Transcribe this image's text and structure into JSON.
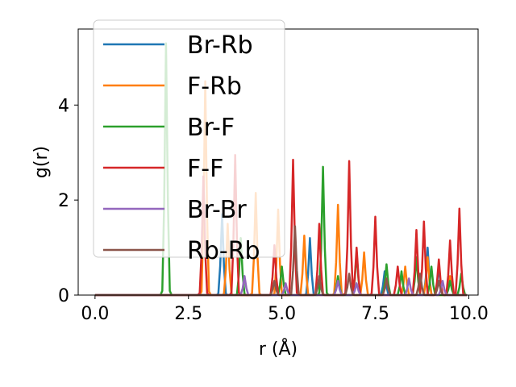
{
  "chart_data": {
    "type": "line",
    "xlabel": "r (Å)",
    "ylabel": "g(r)",
    "xlim": [
      -0.45,
      10.25
    ],
    "ylim": [
      0,
      5.6
    ],
    "xticks": [
      0.0,
      2.5,
      5.0,
      7.5,
      10.0
    ],
    "xtick_labels": [
      "0.0",
      "2.5",
      "5.0",
      "7.5",
      "10.0"
    ],
    "yticks": [
      0,
      2,
      4
    ],
    "ytick_labels": [
      "0",
      "2",
      "4"
    ],
    "grid": false,
    "legend_placement": "upper-left",
    "series": [
      {
        "name": "Br-Rb",
        "color": "#1f77b4",
        "peaks": [
          [
            3.4,
            1.7
          ],
          [
            5.75,
            1.2
          ],
          [
            7.75,
            0.5
          ],
          [
            8.9,
            1.0
          ],
          [
            9.2,
            0.6
          ]
        ]
      },
      {
        "name": "F-Rb",
        "color": "#ff7f0e",
        "peaks": [
          [
            2.95,
            4.5
          ],
          [
            3.55,
            1.5
          ],
          [
            4.3,
            2.15
          ],
          [
            4.9,
            1.8
          ],
          [
            5.6,
            1.25
          ],
          [
            6.5,
            1.9
          ],
          [
            7.2,
            0.9
          ],
          [
            8.3,
            0.6
          ],
          [
            8.9,
            0.8
          ],
          [
            9.5,
            0.4
          ]
        ]
      },
      {
        "name": "Br-F",
        "color": "#2ca02c",
        "peaks": [
          [
            1.9,
            5.3
          ],
          [
            3.9,
            1.2
          ],
          [
            5.0,
            0.6
          ],
          [
            6.1,
            2.7
          ],
          [
            6.5,
            0.4
          ],
          [
            7.0,
            0.9
          ],
          [
            7.8,
            0.65
          ],
          [
            8.2,
            0.5
          ],
          [
            8.6,
            0.8
          ],
          [
            9.0,
            0.6
          ],
          [
            9.5,
            0.3
          ],
          [
            9.8,
            0.45
          ]
        ]
      },
      {
        "name": "F-F",
        "color": "#d62728",
        "peaks": [
          [
            2.9,
            2.5
          ],
          [
            3.75,
            2.95
          ],
          [
            4.8,
            1.05
          ],
          [
            5.3,
            2.85
          ],
          [
            6.0,
            1.5
          ],
          [
            6.8,
            2.82
          ],
          [
            7.0,
            1.0
          ],
          [
            7.5,
            1.65
          ],
          [
            8.1,
            0.6
          ],
          [
            8.6,
            1.37
          ],
          [
            8.8,
            1.55
          ],
          [
            9.2,
            0.75
          ],
          [
            9.5,
            1.15
          ],
          [
            9.75,
            1.82
          ]
        ]
      },
      {
        "name": "Br-Br",
        "color": "#9467bd",
        "peaks": [
          [
            4.0,
            0.4
          ],
          [
            5.1,
            0.25
          ],
          [
            6.5,
            0.3
          ],
          [
            7.0,
            0.25
          ],
          [
            8.4,
            0.35
          ],
          [
            9.3,
            0.3
          ]
        ]
      },
      {
        "name": "Rb-Rb",
        "color": "#8c564b",
        "peaks": [
          [
            4.8,
            0.3
          ],
          [
            5.35,
            1.45
          ],
          [
            6.0,
            0.4
          ],
          [
            6.8,
            0.45
          ],
          [
            7.8,
            0.35
          ],
          [
            8.7,
            0.45
          ],
          [
            9.2,
            0.3
          ]
        ]
      }
    ]
  }
}
